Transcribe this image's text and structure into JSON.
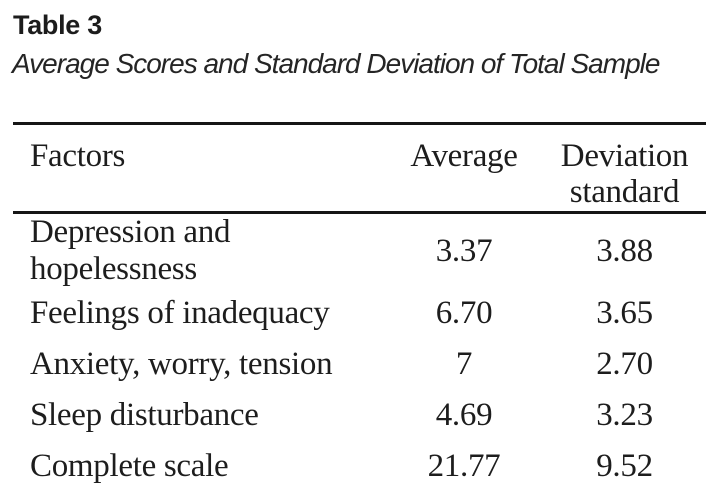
{
  "page": {
    "background": "#ffffff",
    "text_color": "#1d1d1d",
    "rule_color": "#161616"
  },
  "header": {
    "table_number": "Table 3",
    "caption": "Average Scores and Standard Deviation of Total Sample"
  },
  "table": {
    "columns": {
      "factor": "Factors",
      "average": "Average",
      "deviation": "Deviation\nstandard"
    },
    "rows": [
      {
        "factor": "Depression and hopelessness",
        "average": "3.37",
        "deviation": "3.88"
      },
      {
        "factor": "Feelings of inadequacy",
        "average": "6.70",
        "deviation": "3.65"
      },
      {
        "factor": "Anxiety, worry, tension",
        "average": "7",
        "deviation": "2.70"
      },
      {
        "factor": "Sleep disturbance",
        "average": "4.69",
        "deviation": "3.23"
      },
      {
        "factor": "Complete scale",
        "average": "21.77",
        "deviation": "9.52"
      }
    ]
  }
}
